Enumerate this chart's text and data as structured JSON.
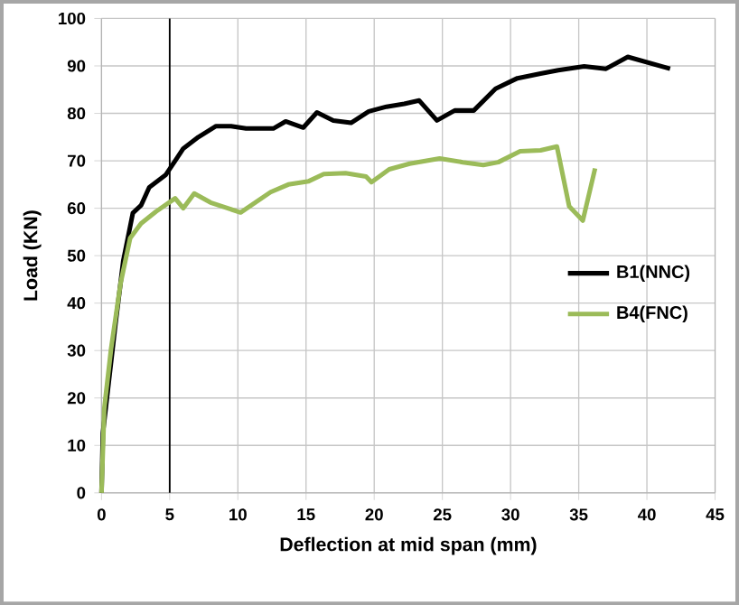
{
  "chart_data": {
    "type": "line",
    "xlabel": "Deflection at mid span (mm)",
    "ylabel": "Load (KN)",
    "xlim": [
      0,
      45
    ],
    "ylim": [
      0,
      100
    ],
    "xticks": [
      0,
      5,
      10,
      15,
      20,
      25,
      30,
      35,
      40,
      45
    ],
    "yticks": [
      0,
      10,
      20,
      30,
      40,
      50,
      60,
      70,
      80,
      90,
      100
    ],
    "grid": true,
    "legend": "right",
    "marker": "none",
    "line_style": "solid",
    "ref_lines": [
      {
        "axis": "x",
        "value": 5,
        "color": "#000000"
      }
    ],
    "series": [
      {
        "name": "B1(NNC)",
        "color": "#000000",
        "x": [
          0,
          0.1,
          1,
          1.6,
          2.3,
          2.9,
          3.5,
          4.7,
          5.4,
          6,
          7.1,
          8.4,
          9.5,
          10.6,
          12.6,
          13.5,
          14.8,
          15.8,
          17,
          18.3,
          19.6,
          20.9,
          22.2,
          23.3,
          24.6,
          25.9,
          27.3,
          28.9,
          30.5,
          32.2,
          33.5,
          35.4,
          37,
          38.6,
          41.7
        ],
        "values": [
          0,
          12.6,
          35,
          49,
          59,
          60.6,
          64.4,
          67,
          70,
          72.6,
          75,
          77.3,
          77.3,
          76.8,
          76.8,
          78.3,
          77,
          80.2,
          78.5,
          78,
          80.4,
          81.4,
          82,
          82.7,
          78.5,
          80.6,
          80.6,
          85.2,
          87.4,
          88.4,
          89.1,
          89.9,
          89.4,
          91.9,
          89.4
        ]
      },
      {
        "name": "B4(FNC)",
        "color": "#9bbb59",
        "x": [
          0,
          0.2,
          0.7,
          1.4,
          2.1,
          2.9,
          4,
          5.4,
          6,
          6.8,
          8,
          10.2,
          12.4,
          13.7,
          15.2,
          16.3,
          17.9,
          19.4,
          19.8,
          21.1,
          22.6,
          24.8,
          26.5,
          28,
          29.1,
          30.7,
          32.2,
          33.4,
          34.3,
          35.3,
          36.2
        ],
        "values": [
          0,
          17.7,
          30.3,
          44.2,
          53.7,
          56.8,
          59.3,
          62.1,
          60,
          63.1,
          61.2,
          59.1,
          63.4,
          65,
          65.7,
          67.2,
          67.4,
          66.7,
          65.5,
          68.2,
          69.4,
          70.5,
          69.7,
          69.1,
          69.7,
          72,
          72.2,
          73,
          60.4,
          57.4,
          68.4
        ]
      }
    ]
  }
}
